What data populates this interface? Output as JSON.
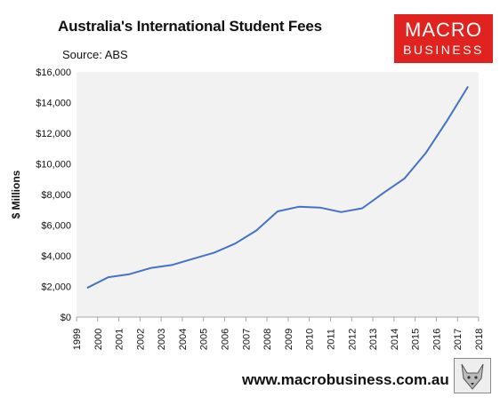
{
  "header": {
    "title": "Australia's International Student Fees",
    "subtitle": "Source: ABS"
  },
  "logo": {
    "line1": "MACRO",
    "line2": "BUSINESS",
    "bg_color": "#e0231f"
  },
  "footer": {
    "url": "www.macrobusiness.com.au",
    "mascot_icon": "fox-icon"
  },
  "chart_data": {
    "type": "line",
    "title": "Australia's International Student Fees",
    "subtitle": "Source: ABS",
    "xlabel": "",
    "ylabel": "$ Millions",
    "xlim": [
      1999,
      2018
    ],
    "ylim": [
      0,
      16000
    ],
    "x_ticks": [
      "1999",
      "2000",
      "2001",
      "2002",
      "2003",
      "2004",
      "2005",
      "2006",
      "2007",
      "2008",
      "2009",
      "2010",
      "2011",
      "2012",
      "2013",
      "2014",
      "2015",
      "2016",
      "2017",
      "2018"
    ],
    "y_ticks": [
      "$0",
      "$2,000",
      "$4,000",
      "$6,000",
      "$8,000",
      "$10,000",
      "$12,000",
      "$14,000",
      "$16,000"
    ],
    "y_tick_values": [
      0,
      2000,
      4000,
      6000,
      8000,
      10000,
      12000,
      14000,
      16000
    ],
    "grid": false,
    "plot_bg": "#f2f2f2",
    "series": [
      {
        "color": "#4472c4",
        "x": [
          1999.5,
          2000.5,
          2001.5,
          2002.5,
          2003.5,
          2004.5,
          2005.5,
          2006.5,
          2007.5,
          2008.5,
          2009.5,
          2010.5,
          2011.5,
          2012.5,
          2013.5,
          2014.5,
          2015.5,
          2016.5,
          2017.5
        ],
        "values": [
          1900,
          2600,
          2800,
          3200,
          3400,
          3800,
          4200,
          4800,
          5650,
          6900,
          7200,
          7150,
          6850,
          7100,
          8100,
          9050,
          10700,
          12800,
          15050
        ]
      }
    ]
  }
}
